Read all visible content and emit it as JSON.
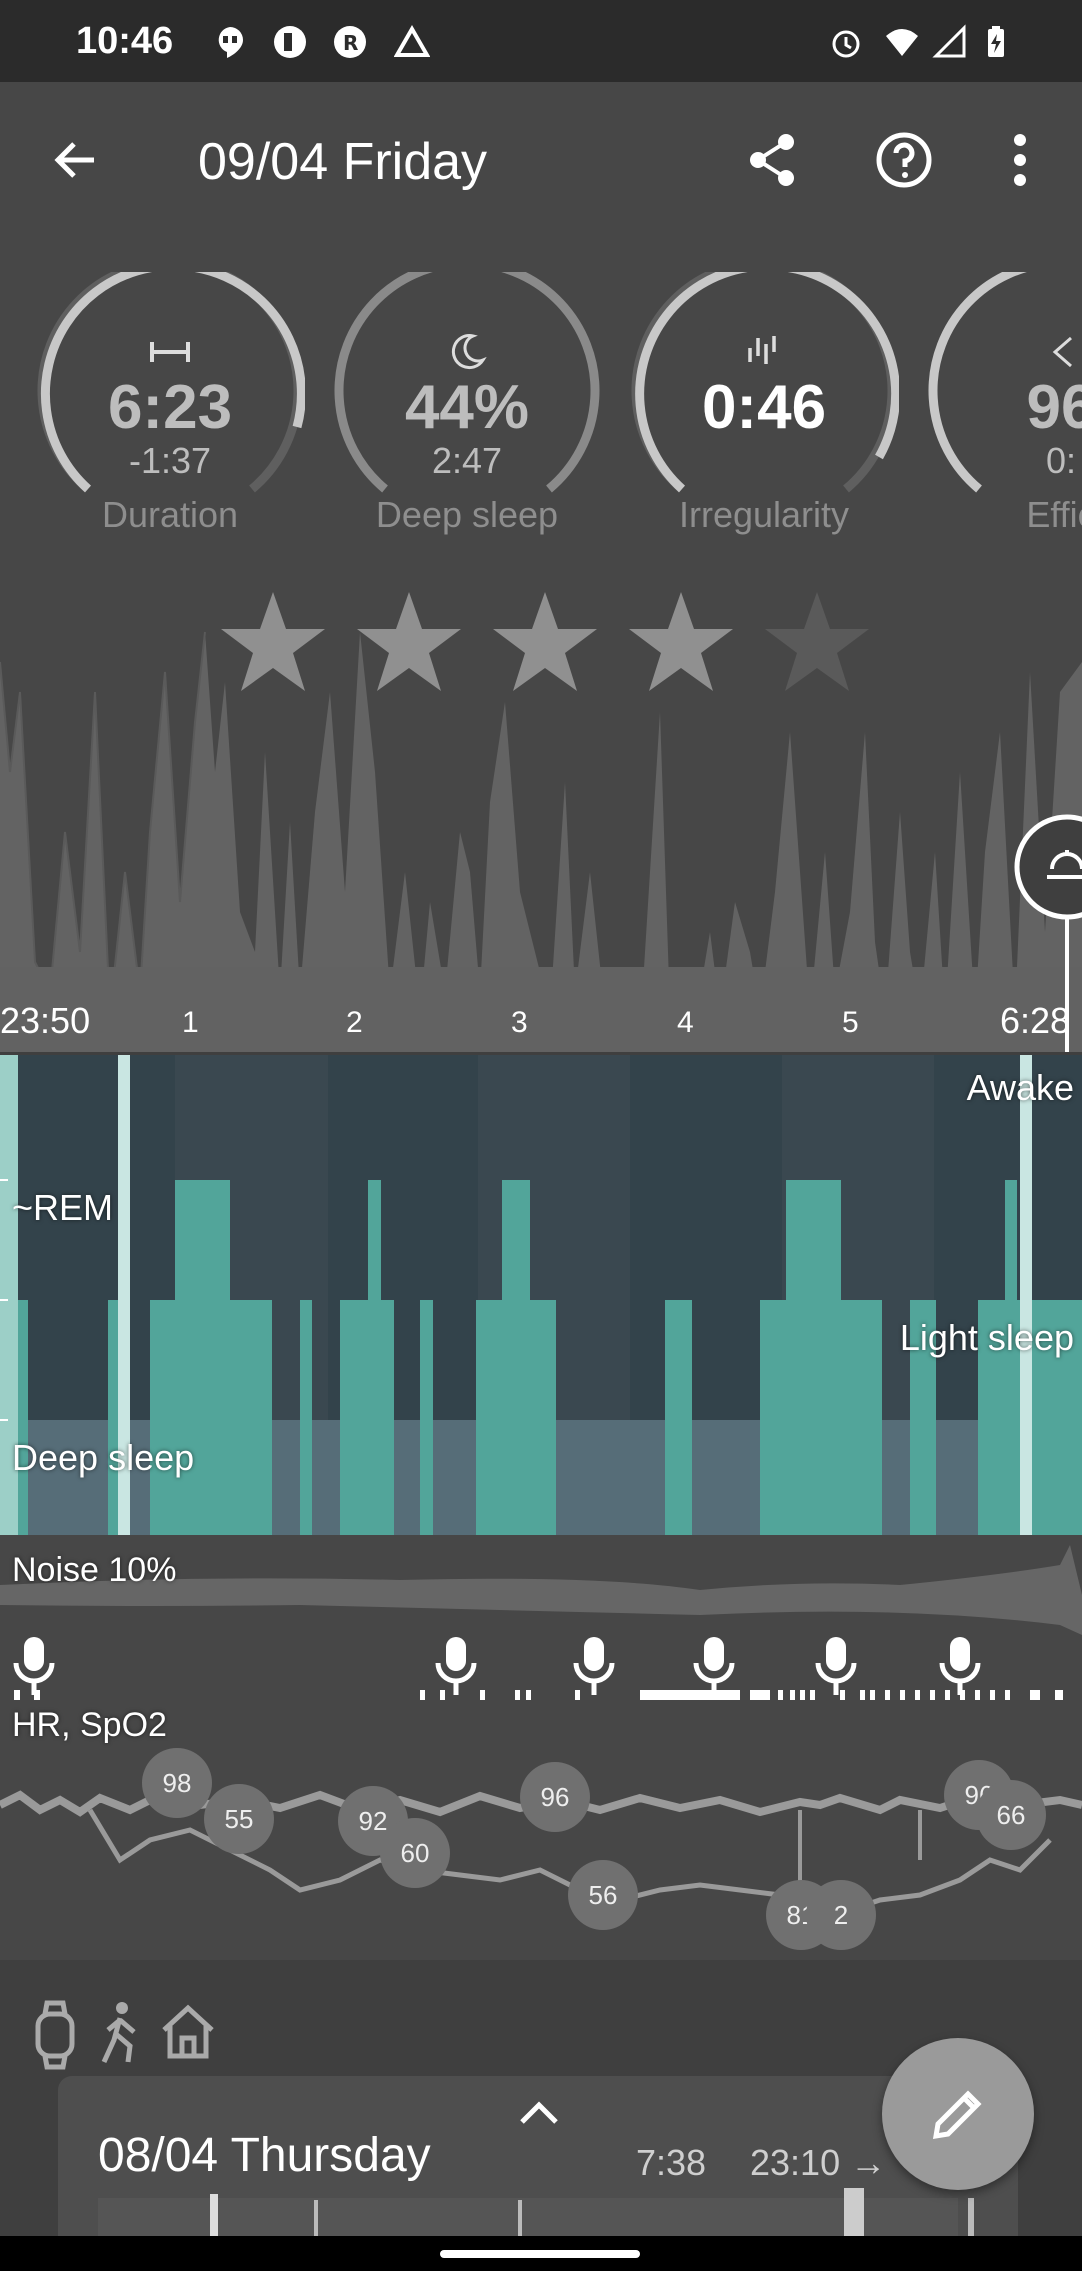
{
  "status_bar": {
    "time": "10:46",
    "icons_left": [
      "hangouts-icon",
      "mail-icon",
      "r-app-icon",
      "drive-icon"
    ],
    "icons_right": [
      "alarm-icon",
      "wifi-icon",
      "signal-icon",
      "battery-icon"
    ]
  },
  "app_bar": {
    "title": "09/04 Friday",
    "icons": [
      "back-arrow-icon",
      "share-icon",
      "help-icon",
      "more-vert-icon"
    ]
  },
  "gauges": [
    {
      "icon": "duration-icon",
      "value": "6:23",
      "sub": "-1:37",
      "label": "Duration",
      "fill": 0.85
    },
    {
      "icon": "moon-icon",
      "value": "44%",
      "sub": "2:47",
      "label": "Deep sleep",
      "fill": 0.44
    },
    {
      "icon": "irregularity-icon",
      "value": "0:46",
      "sub": "",
      "label": "Irregularity",
      "fill": 0.9
    },
    {
      "icon": "efficiency-icon",
      "value": "96",
      "sub": "0:",
      "label": "Effic",
      "fill": 0.96
    }
  ],
  "rating": {
    "stars_filled": 4,
    "stars_total": 5
  },
  "time_axis": {
    "start": "23:50",
    "ticks": [
      "1",
      "2",
      "3",
      "4",
      "5"
    ],
    "end": "6:28"
  },
  "hypnogram": {
    "labels": {
      "awake": "Awake",
      "rem": "~REM",
      "light": "Light sleep",
      "deep": "Deep sleep"
    }
  },
  "noise": {
    "label": "Noise 10%"
  },
  "hr": {
    "label": "HR, SpO2",
    "bubbles": [
      "98",
      "55",
      "92",
      "60",
      "96",
      "56",
      "81",
      "2",
      "96",
      "66"
    ]
  },
  "bottom_icons": [
    "watch-icon",
    "walk-icon",
    "home-icon"
  ],
  "bottom_sheet": {
    "title": "08/04 Thursday",
    "duration": "7:38",
    "start": "23:10 →"
  },
  "colors": {
    "background": "#474747",
    "hypnogram_bg": "#2f3d44",
    "sleep_bar": "#52a59a",
    "deep_band": "#566d78"
  }
}
